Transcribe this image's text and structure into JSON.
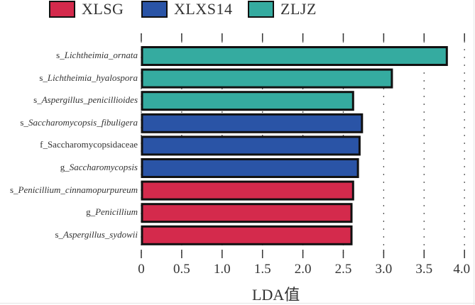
{
  "chart_data": {
    "type": "bar",
    "orientation": "horizontal",
    "title": "",
    "xlabel": "LDA值",
    "ylabel": "",
    "xlim": [
      0,
      4.0
    ],
    "xticks": [
      "0",
      "0.5",
      "1.0",
      "1.5",
      "2.0",
      "2.5",
      "3.0",
      "3.5",
      "4.0"
    ],
    "grid": "vertical dotted",
    "legend_position": "top",
    "legend": [
      {
        "name": "XLSG",
        "color": "#d42a4c"
      },
      {
        "name": "XLXS14",
        "color": "#2a54a6"
      },
      {
        "name": "ZLJZ",
        "color": "#35aba0"
      }
    ],
    "bars": [
      {
        "prefix": "s_",
        "name": "Lichtheimia_ornata",
        "italic": true,
        "group": "ZLJZ",
        "value": 3.79
      },
      {
        "prefix": "s_",
        "name": "Lichtheimia_hyalospora",
        "italic": true,
        "group": "ZLJZ",
        "value": 3.11
      },
      {
        "prefix": "s_",
        "name": "Aspergillus_penicillioides",
        "italic": true,
        "group": "ZLJZ",
        "value": 2.63
      },
      {
        "prefix": "s_",
        "name": "Saccharomycopsis_fibuligera",
        "italic": true,
        "group": "XLXS14",
        "value": 2.74
      },
      {
        "prefix": "f_",
        "name": "Saccharomycopsidaceae",
        "italic": false,
        "group": "XLXS14",
        "value": 2.71
      },
      {
        "prefix": "g_",
        "name": "Saccharomycopsis",
        "italic": true,
        "group": "XLXS14",
        "value": 2.69
      },
      {
        "prefix": "s_",
        "name": "Penicillium_cinnamopurpureum",
        "italic": true,
        "group": "XLSG",
        "value": 2.63
      },
      {
        "prefix": "g_",
        "name": "Penicillium",
        "italic": true,
        "group": "XLSG",
        "value": 2.61
      },
      {
        "prefix": "s_",
        "name": "Aspergillus_sydowii",
        "italic": true,
        "group": "XLSG",
        "value": 2.61
      }
    ]
  }
}
